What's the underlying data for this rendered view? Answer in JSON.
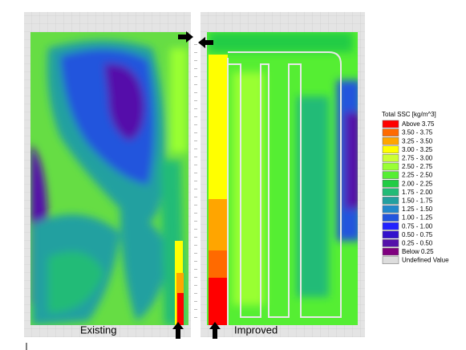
{
  "legend": {
    "title": "Total SSC [kg/m^3]",
    "items": [
      {
        "label": "Above 3.75",
        "color": "#ff0000"
      },
      {
        "label": "3.50 - 3.75",
        "color": "#ff6a00"
      },
      {
        "label": "3.25 - 3.50",
        "color": "#ffa500"
      },
      {
        "label": "3.00 - 3.25",
        "color": "#ffff00"
      },
      {
        "label": "2.75 - 3.00",
        "color": "#ccff33"
      },
      {
        "label": "2.50 - 2.75",
        "color": "#99ff33"
      },
      {
        "label": "2.25 - 2.50",
        "color": "#55ee33"
      },
      {
        "label": "2.00 - 2.25",
        "color": "#22cc44"
      },
      {
        "label": "1.75 - 2.00",
        "color": "#22bb77"
      },
      {
        "label": "1.50 - 1.75",
        "color": "#22a0a0"
      },
      {
        "label": "1.25 - 1.50",
        "color": "#2288cc"
      },
      {
        "label": "1.00 - 1.25",
        "color": "#2255dd"
      },
      {
        "label": "0.75 - 1.00",
        "color": "#2222ff"
      },
      {
        "label": "0.50 - 0.75",
        "color": "#3311cc"
      },
      {
        "label": "0.25 - 0.50",
        "color": "#5511aa"
      },
      {
        "label": "Below 0.25",
        "color": "#800080"
      },
      {
        "label": "Undefined Value",
        "color": "#dddddd"
      }
    ]
  },
  "panels": [
    "Existing",
    "Improved"
  ]
}
